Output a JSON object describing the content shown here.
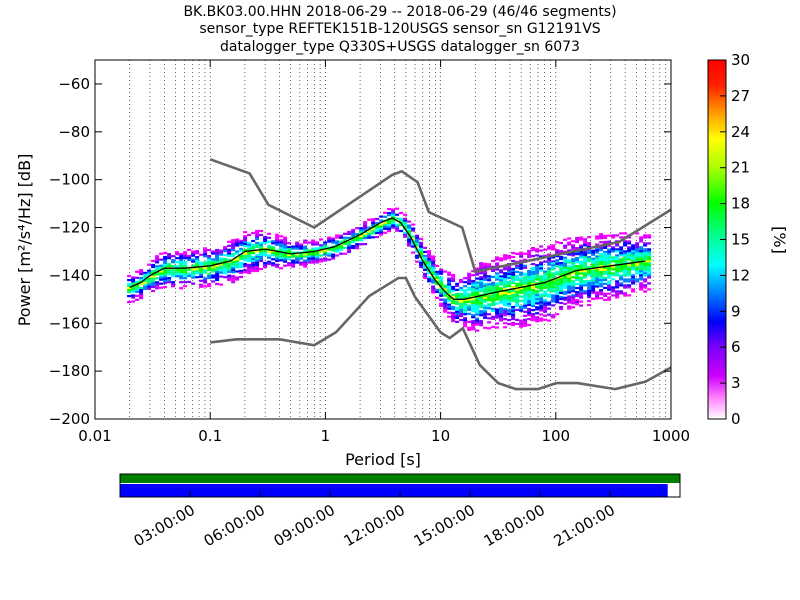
{
  "chart_data": {
    "type": "heatmap",
    "title_lines": [
      "BK.BK03.00.HHN   2018-06-29 -- 2018-06-29  (46/46 segments)",
      "sensor_type REFTEK151B-120USGS sensor_sn G12191VS",
      "datalogger_type Q330S+USGS datalogger_sn 6073"
    ],
    "xlabel": "Period [s]",
    "ylabel": "Power [m²/s⁴/Hz] [dB]",
    "xscale": "log",
    "xlim": [
      0.01,
      1000
    ],
    "ylim": [
      -200,
      -50
    ],
    "x_ticks": [
      {
        "value": 0.01,
        "label": "0.01"
      },
      {
        "value": 0.1,
        "label": "0.1"
      },
      {
        "value": 1,
        "label": "1"
      },
      {
        "value": 10,
        "label": "10"
      },
      {
        "value": 100,
        "label": "100"
      },
      {
        "value": 1000,
        "label": "1000"
      }
    ],
    "y_ticks": [
      {
        "value": -60,
        "label": "−60"
      },
      {
        "value": -80,
        "label": "−80"
      },
      {
        "value": -100,
        "label": "−100"
      },
      {
        "value": -120,
        "label": "−120"
      },
      {
        "value": -140,
        "label": "−140"
      },
      {
        "value": -160,
        "label": "−160"
      },
      {
        "value": -180,
        "label": "−180"
      },
      {
        "value": -200,
        "label": "−200"
      }
    ],
    "colorbar": {
      "label": "[%]",
      "range": [
        0,
        30
      ],
      "ticks": [
        "0",
        "3",
        "6",
        "9",
        "12",
        "15",
        "18",
        "21",
        "24",
        "27",
        "30"
      ]
    },
    "nhnm": {
      "name": "High noise model",
      "x": [
        0.1,
        0.22,
        0.32,
        0.8,
        3.8,
        4.6,
        6.3,
        7.9,
        15.4,
        20,
        354.8,
        1000
      ],
      "y": [
        -91.5,
        -97.4,
        -110.5,
        -120,
        -98,
        -96.5,
        -101,
        -113.5,
        -120,
        -138.5,
        -126,
        -112.5
      ]
    },
    "nlnm": {
      "name": "Low noise model",
      "x": [
        0.1,
        0.17,
        0.4,
        0.8,
        1.24,
        2.4,
        4.3,
        5,
        6,
        10,
        12,
        15.6,
        21.9,
        31.6,
        45,
        70,
        101,
        154,
        328,
        600,
        1000
      ],
      "y": [
        -168,
        -166.7,
        -166.7,
        -169.2,
        -163.7,
        -148.6,
        -141.1,
        -141.1,
        -149,
        -163.8,
        -166.2,
        -162.1,
        -177.5,
        -185,
        -187.5,
        -187.5,
        -185,
        -185,
        -187.5,
        -184.4,
        -178.5
      ]
    },
    "mode": {
      "name": "Mode",
      "x": [
        0.02,
        0.025,
        0.03,
        0.04,
        0.06,
        0.1,
        0.15,
        0.2,
        0.3,
        0.5,
        0.8,
        1.2,
        2,
        3,
        3.8,
        4.5,
        5.5,
        7,
        9,
        11,
        13,
        16,
        20,
        30,
        50,
        80,
        150,
        300,
        600
      ],
      "y": [
        -145,
        -143,
        -140,
        -137,
        -137,
        -136,
        -134,
        -130,
        -129,
        -131,
        -130,
        -128,
        -123,
        -118,
        -116,
        -118,
        -124,
        -134,
        -142,
        -147,
        -150,
        -150,
        -149,
        -147,
        -145,
        -143,
        -138,
        -136,
        -134
      ]
    },
    "data_band": {
      "name": "PPSD density",
      "center_x": [
        0.02,
        0.025,
        0.03,
        0.04,
        0.06,
        0.1,
        0.15,
        0.2,
        0.3,
        0.5,
        0.8,
        1.2,
        2,
        3,
        3.8,
        4.5,
        5.5,
        7,
        9,
        11,
        13,
        16,
        20,
        30,
        50,
        80,
        150,
        300,
        600
      ],
      "center_y": [
        -145,
        -143,
        -140,
        -137,
        -137,
        -136,
        -134,
        -130,
        -129,
        -131,
        -130,
        -128,
        -123,
        -118,
        -116,
        -118,
        -124,
        -134,
        -142,
        -147,
        -150,
        -150,
        -149,
        -147,
        -145,
        -143,
        -138,
        -136,
        -134
      ],
      "spread_db": [
        6,
        6,
        7,
        8,
        8,
        8,
        9,
        9,
        8,
        6,
        5,
        5,
        5,
        5,
        5,
        5,
        6,
        7,
        8,
        9,
        10,
        12,
        14,
        15,
        16,
        16,
        15,
        14,
        12
      ]
    },
    "timeline": {
      "ticks": [
        "03:00:00",
        "06:00:00",
        "09:00:00",
        "12:00:00",
        "15:00:00",
        "18:00:00",
        "21:00:00"
      ],
      "top_bar_color": "#008000",
      "bottom_bar_color": "#0000ff",
      "bottom_bar_coverage": 0.978
    }
  }
}
